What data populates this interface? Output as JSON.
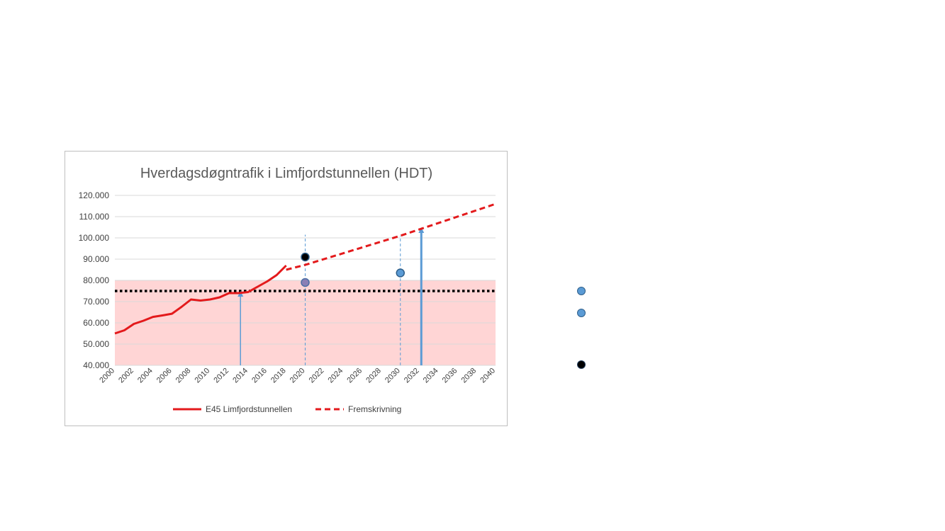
{
  "chart_data": {
    "type": "line",
    "title": "Hverdagsdøgntrafik i Limfjordstunnellen (HDT)",
    "xlabel": "",
    "ylabel": "",
    "xlim": [
      2000,
      2040
    ],
    "ylim": [
      40000,
      120000
    ],
    "ytick_labels": [
      "40.000",
      "50.000",
      "60.000",
      "70.000",
      "80.000",
      "90.000",
      "100.000",
      "110.000",
      "120.000"
    ],
    "ytick_values": [
      40000,
      50000,
      60000,
      70000,
      80000,
      90000,
      100000,
      110000,
      120000
    ],
    "xtick_labels": [
      "2000",
      "2002",
      "2004",
      "2006",
      "2008",
      "2010",
      "2012",
      "2014",
      "2016",
      "2018",
      "2020",
      "2022",
      "2024",
      "2026",
      "2028",
      "2030",
      "2032",
      "2034",
      "2036",
      "2038",
      "2040"
    ],
    "grid": "horizontal",
    "legend_position": "bottom",
    "colors": {
      "series": "#e31a1c",
      "band_fill": "#ffd5d5",
      "threshold": "#000000",
      "marker": "#5b9bd5",
      "marker_mauve": "#8a7fb5",
      "arrow": "#5b9bd5",
      "gridline": "#d9d9d9"
    },
    "series": [
      {
        "name": "E45 Limfjordstunnellen",
        "style": "solid",
        "x": [
          2000,
          2001,
          2002,
          2003,
          2004,
          2005,
          2006,
          2007,
          2008,
          2009,
          2010,
          2011,
          2012,
          2013,
          2014,
          2015,
          2016,
          2017,
          2018
        ],
        "y": [
          55000,
          56500,
          59500,
          61000,
          62800,
          63500,
          64300,
          67500,
          71000,
          70500,
          71000,
          72000,
          74000,
          74000,
          74500,
          77000,
          79500,
          82500,
          87000
        ]
      },
      {
        "name": "Fremskrivning",
        "style": "dashed",
        "x": [
          2018,
          2020,
          2030,
          2040
        ],
        "y": [
          85000,
          87300,
          101000,
          116000
        ]
      }
    ],
    "threshold_band": {
      "from": 40000,
      "to": 80000
    },
    "threshold_line": {
      "y": 75000
    },
    "points": [
      {
        "x": 2020,
        "y": 91000,
        "kind": "dark"
      },
      {
        "x": 2020,
        "y": 79000,
        "kind": "mauve"
      },
      {
        "x": 2030,
        "y": 83500,
        "kind": "blue"
      }
    ],
    "vertical_guides": [
      {
        "x": 2020,
        "to": 101500
      },
      {
        "x": 2030,
        "to": 101000
      }
    ],
    "arrows": [
      {
        "x": 2013.2,
        "from": 40000,
        "to": 75000
      },
      {
        "x": 2032.2,
        "from": 40000,
        "to": 105000
      }
    ]
  },
  "side_markers": [
    {
      "kind": "blue"
    },
    {
      "kind": "blue"
    },
    {
      "kind": "dark"
    }
  ]
}
